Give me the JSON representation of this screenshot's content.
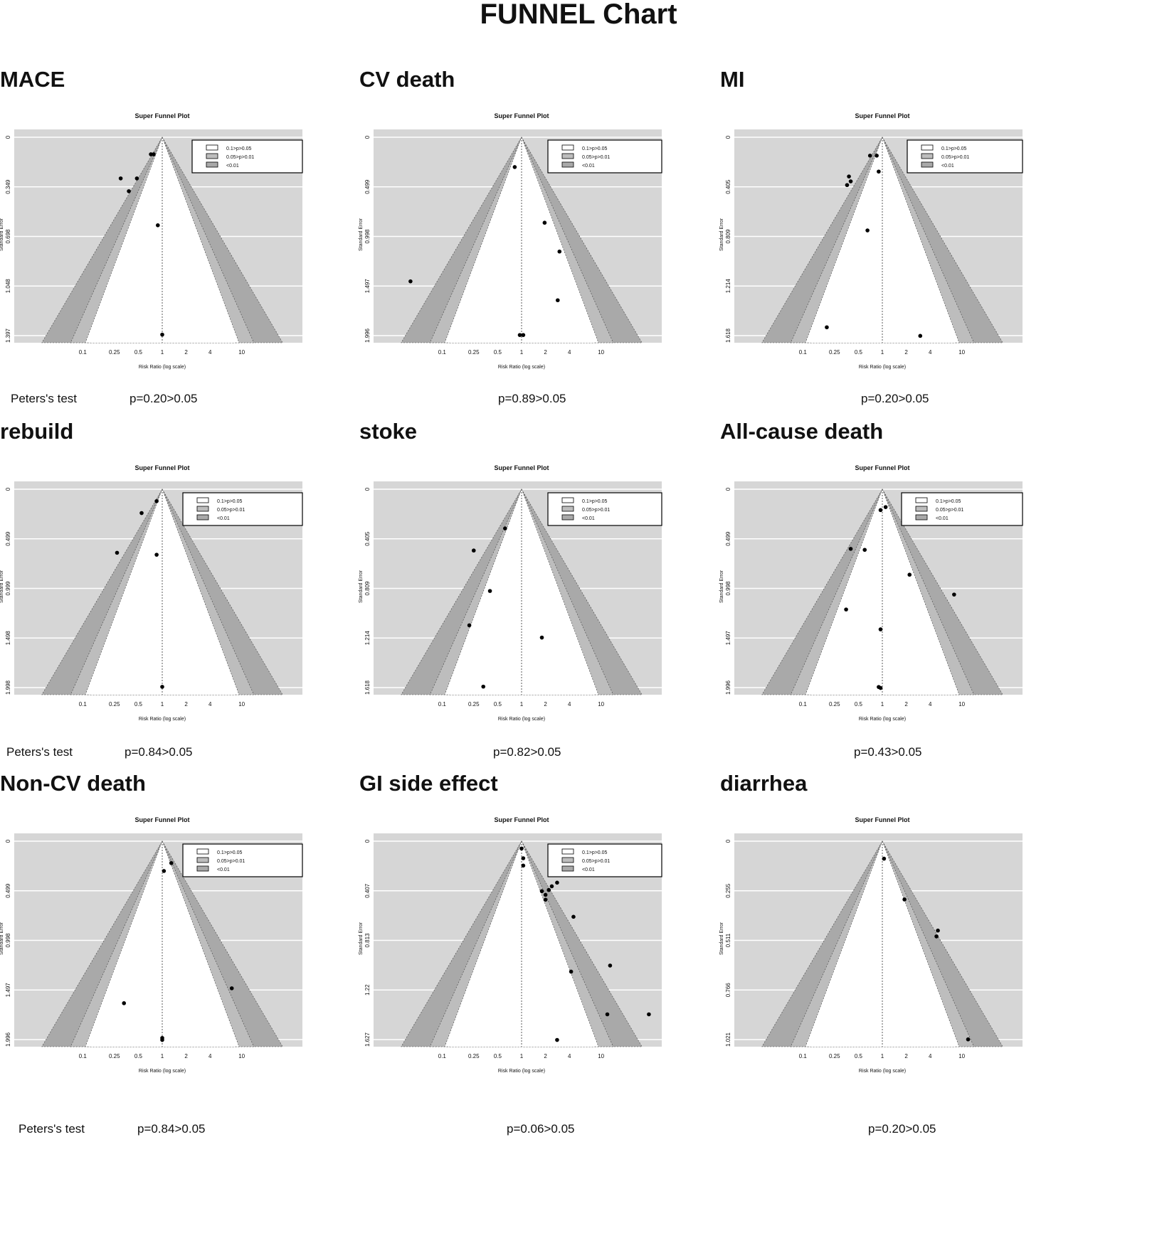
{
  "page": {
    "title": "FUNNEL Chart"
  },
  "legend": [
    "0.1>p>0.05",
    "0.05>p>0.01",
    "<0.01"
  ],
  "chart_data": [
    {
      "type": "scatter",
      "name": "MACE",
      "title": "Super Funnel Plot",
      "xlabel": "Risk Ratio (log scale)",
      "ylabel": "Standard Error",
      "xticks": [
        "0.1",
        "0.25",
        "0.5",
        "1",
        "2",
        "4",
        "10"
      ],
      "yticks": [
        "0",
        "0.349",
        "0.698",
        "1.048",
        "1.397"
      ],
      "ymax": 1.397,
      "xscale": "log",
      "points": [
        [
          0.72,
          0.12
        ],
        [
          0.78,
          0.12
        ],
        [
          0.3,
          0.29
        ],
        [
          0.48,
          0.29
        ],
        [
          0.38,
          0.38
        ],
        [
          0.88,
          0.62
        ],
        [
          1.0,
          1.39
        ]
      ],
      "test_label": "Peters's test",
      "p_text": "p=0.20>0.05"
    },
    {
      "type": "scatter",
      "name": "CV death",
      "title": "Super Funnel Plot",
      "xlabel": "Risk Ratio (log scale)",
      "ylabel": "Standard Error",
      "xticks": [
        "0.1",
        "0.25",
        "0.5",
        "1",
        "2",
        "4",
        "10"
      ],
      "yticks": [
        "0",
        "0.499",
        "0.998",
        "1.497",
        "1.996"
      ],
      "ymax": 1.996,
      "xscale": "log",
      "points": [
        [
          0.82,
          0.3
        ],
        [
          1.95,
          0.86
        ],
        [
          3.0,
          1.15
        ],
        [
          0.04,
          1.45
        ],
        [
          2.85,
          1.64
        ],
        [
          0.95,
          1.99
        ],
        [
          1.05,
          1.99
        ]
      ],
      "test_label": "",
      "p_text": "p=0.89>0.05"
    },
    {
      "type": "scatter",
      "name": "MI",
      "title": "Super Funnel Plot",
      "xlabel": "Risk Ratio (log scale)",
      "ylabel": "Standard Error",
      "xticks": [
        "0.1",
        "0.25",
        "0.5",
        "1",
        "2",
        "4",
        "10"
      ],
      "yticks": [
        "0",
        "0.405",
        "0.809",
        "1.214",
        "1.618"
      ],
      "ymax": 1.618,
      "xscale": "log",
      "points": [
        [
          0.7,
          0.15
        ],
        [
          0.85,
          0.15
        ],
        [
          0.38,
          0.32
        ],
        [
          0.4,
          0.36
        ],
        [
          0.36,
          0.39
        ],
        [
          0.9,
          0.28
        ],
        [
          0.65,
          0.76
        ],
        [
          0.2,
          1.55
        ],
        [
          3.0,
          1.62
        ]
      ],
      "test_label": "",
      "p_text": "p=0.20>0.05"
    },
    {
      "type": "scatter",
      "name": "rebuild",
      "title": "Super Funnel Plot",
      "xlabel": "Risk Ratio (log scale)",
      "ylabel": "Standard Error",
      "xticks": [
        "0.1",
        "0.25",
        "0.5",
        "1",
        "2",
        "4",
        "10"
      ],
      "yticks": [
        "0",
        "0.499",
        "0.999",
        "1.498",
        "1.998"
      ],
      "ymax": 1.998,
      "xscale": "log",
      "points": [
        [
          0.85,
          0.12
        ],
        [
          0.55,
          0.24
        ],
        [
          0.27,
          0.64
        ],
        [
          0.85,
          0.66
        ],
        [
          1.0,
          1.99
        ]
      ],
      "test_label": "Peters's test",
      "p_text": "p=0.84>0.05"
    },
    {
      "type": "scatter",
      "name": "stoke",
      "title": "Super Funnel Plot",
      "xlabel": "Risk Ratio (log scale)",
      "ylabel": "Standard Error",
      "xticks": [
        "0.1",
        "0.25",
        "0.5",
        "1",
        "2",
        "4",
        "10"
      ],
      "yticks": [
        "0",
        "0.405",
        "0.809",
        "1.214",
        "1.618"
      ],
      "ymax": 1.618,
      "xscale": "log",
      "points": [
        [
          0.62,
          0.32
        ],
        [
          0.25,
          0.5
        ],
        [
          0.4,
          0.83
        ],
        [
          0.22,
          1.11
        ],
        [
          1.8,
          1.21
        ],
        [
          0.33,
          1.61
        ]
      ],
      "test_label": "",
      "p_text": "p=0.82>0.05"
    },
    {
      "type": "scatter",
      "name": "All-cause death",
      "title": "Super Funnel Plot",
      "xlabel": "Risk Ratio (log scale)",
      "ylabel": "Standard Error",
      "xticks": [
        "0.1",
        "0.25",
        "0.5",
        "1",
        "2",
        "4",
        "10"
      ],
      "yticks": [
        "0",
        "0.499",
        "0.998",
        "1.497",
        "1.996"
      ],
      "ymax": 1.996,
      "xscale": "log",
      "points": [
        [
          1.1,
          0.18
        ],
        [
          0.95,
          0.21
        ],
        [
          0.4,
          0.6
        ],
        [
          0.6,
          0.61
        ],
        [
          2.2,
          0.86
        ],
        [
          8.0,
          1.06
        ],
        [
          0.35,
          1.21
        ],
        [
          0.95,
          1.41
        ],
        [
          0.9,
          1.99
        ],
        [
          0.95,
          2.0
        ]
      ],
      "test_label": "",
      "p_text": "p=0.43>0.05"
    },
    {
      "type": "scatter",
      "name": "Non-CV death",
      "title": "Super Funnel Plot",
      "xlabel": "Risk Ratio (log scale)",
      "ylabel": "Standard Error",
      "xticks": [
        "0.1",
        "0.25",
        "0.5",
        "1",
        "2",
        "4",
        "10"
      ],
      "yticks": [
        "0",
        "0.499",
        "0.998",
        "1.497",
        "1.996"
      ],
      "ymax": 1.996,
      "xscale": "log",
      "points": [
        [
          1.3,
          0.22
        ],
        [
          1.05,
          0.3
        ],
        [
          7.5,
          1.48
        ],
        [
          0.33,
          1.63
        ],
        [
          1.0,
          1.98
        ],
        [
          1.0,
          2.0
        ]
      ],
      "test_label": "Peters's test",
      "p_text": "p=0.84>0.05"
    },
    {
      "type": "scatter",
      "name": "GI side effect",
      "title": "Super Funnel Plot",
      "xlabel": "Risk Ratio (log scale)",
      "ylabel": "Standard Error",
      "xticks": [
        "0.1",
        "0.25",
        "0.5",
        "1",
        "2",
        "4",
        "10"
      ],
      "yticks": [
        "0",
        "0.407",
        "0.813",
        "1.22",
        "1.627"
      ],
      "ymax": 1.627,
      "xscale": "log",
      "points": [
        [
          1.0,
          0.06
        ],
        [
          1.05,
          0.14
        ],
        [
          1.05,
          0.2
        ],
        [
          2.8,
          0.34
        ],
        [
          2.4,
          0.37
        ],
        [
          2.2,
          0.4
        ],
        [
          1.8,
          0.41
        ],
        [
          2.0,
          0.44
        ],
        [
          2.0,
          0.48
        ],
        [
          4.5,
          0.62
        ],
        [
          4.2,
          1.07
        ],
        [
          13.0,
          1.02
        ],
        [
          12.0,
          1.42
        ],
        [
          40.0,
          1.42
        ],
        [
          2.8,
          1.63
        ]
      ],
      "test_label": "",
      "p_text": "p=0.06>0.05"
    },
    {
      "type": "scatter",
      "name": "diarrhea",
      "title": "Super Funnel Plot",
      "xlabel": "Risk Ratio (log scale)",
      "ylabel": "Standard Error",
      "xticks": [
        "0.1",
        "0.25",
        "0.5",
        "1",
        "2",
        "4",
        "10"
      ],
      "yticks": [
        "0",
        "0.255",
        "0.511",
        "0.766",
        "1.021"
      ],
      "ymax": 1.021,
      "xscale": "log",
      "points": [
        [
          1.05,
          0.09
        ],
        [
          1.9,
          0.3
        ],
        [
          5.0,
          0.46
        ],
        [
          4.8,
          0.49
        ],
        [
          12.0,
          1.02
        ]
      ],
      "test_label": "Peters's test",
      "p_text": "p=0.20>0.05"
    }
  ]
}
